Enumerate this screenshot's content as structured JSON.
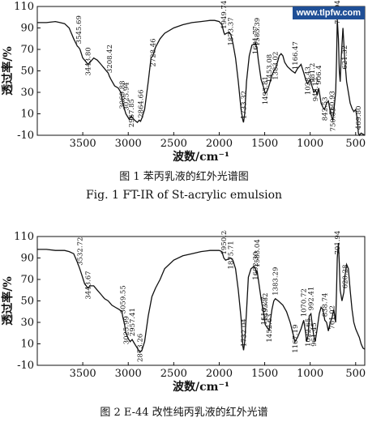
{
  "watermark": "www.tlpfw.com",
  "captions": {
    "fig1_cn": "图 1   苯丙乳液的红外光谱图",
    "fig1_en": "Fig. 1 FT-IR of St-acrylic emulsion",
    "fig2_cn": "图 2   E-44 改性纯丙乳液的红外光谱"
  },
  "chart_data": [
    {
      "type": "line",
      "title": "",
      "xlabel": "波数/cm⁻¹",
      "ylabel": "透过率/%",
      "xlim": [
        4000,
        400
      ],
      "ylim": [
        -10,
        110
      ],
      "xticks": [
        3500,
        3000,
        2500,
        2000,
        1500,
        1000,
        500
      ],
      "yticks": [
        -10,
        10,
        30,
        50,
        70,
        90,
        110
      ],
      "grid": false,
      "series": [
        {
          "x": [
            4000,
            3900,
            3800,
            3750,
            3700,
            3650,
            3600,
            3560,
            3546,
            3530,
            3500,
            3460,
            3444,
            3420,
            3380,
            3340,
            3300,
            3260,
            3220,
            3208,
            3190,
            3150,
            3110,
            3082,
            3070,
            3060,
            3040,
            3026,
            3005,
            2990,
            2968,
            2950,
            2930,
            2900,
            2880,
            2865,
            2850,
            2820,
            2780,
            2750,
            2729,
            2700,
            2650,
            2600,
            2500,
            2400,
            2300,
            2200,
            2100,
            2050,
            2000,
            1970,
            1950,
            1940,
            1920,
            1890,
            1873,
            1850,
            1820,
            1790,
            1760,
            1740,
            1733,
            1720,
            1700,
            1670,
            1640,
            1612,
            1601,
            1590,
            1583,
            1570,
            1540,
            1510,
            1494,
            1480,
            1460,
            1453,
            1440,
            1420,
            1400,
            1383,
            1360,
            1340,
            1320,
            1300,
            1280,
            1250,
            1200,
            1166,
            1140,
            1100,
            1070,
            1050,
            1029,
            1000,
            981,
            960,
            943,
            920,
            906,
            880,
            860,
            842,
            820,
            800,
            780,
            761,
            751,
            740,
            720,
            710,
            702,
            690,
            680,
            670,
            660,
            640,
            621,
            600,
            580,
            560,
            540,
            520,
            500,
            480,
            470,
            460,
            440,
            420,
            400
          ],
          "y": [
            95,
            95,
            96,
            95,
            94,
            90,
            80,
            73,
            72,
            70,
            62,
            58,
            56,
            58,
            62,
            60,
            56,
            52,
            48,
            45,
            42,
            36,
            34,
            30,
            25,
            20,
            14,
            10,
            7,
            5,
            8,
            6,
            4,
            2,
            4,
            3,
            6,
            14,
            40,
            62,
            64,
            72,
            80,
            85,
            90,
            93,
            95,
            96,
            97,
            97,
            96,
            93,
            86,
            84,
            85,
            86,
            84,
            76,
            62,
            40,
            14,
            4,
            2,
            10,
            40,
            64,
            74,
            75,
            76,
            72,
            70,
            60,
            42,
            34,
            29,
            30,
            34,
            36,
            40,
            46,
            50,
            52,
            58,
            64,
            66,
            64,
            58,
            54,
            50,
            48,
            52,
            56,
            48,
            42,
            38,
            42,
            36,
            30,
            32,
            28,
            34,
            20,
            16,
            14,
            20,
            22,
            12,
            6,
            4,
            12,
            30,
            60,
            98,
            80,
            50,
            40,
            60,
            90,
            62,
            40,
            30,
            20,
            15,
            12,
            14,
            4,
            -8,
            -10,
            -8,
            -9,
            -10
          ]
        }
      ],
      "annotations": [
        {
          "label": "3545.69",
          "x": 3546
        },
        {
          "label": "3443.80",
          "x": 3444
        },
        {
          "label": "3208.42",
          "x": 3208
        },
        {
          "label": "3069.88",
          "x": 3070
        },
        {
          "label": "3025.94",
          "x": 3026
        },
        {
          "label": "2967.85",
          "x": 2968
        },
        {
          "label": "2864.66",
          "x": 2865
        },
        {
          "label": "2728.46",
          "x": 2728
        },
        {
          "label": "1949.74",
          "x": 1950
        },
        {
          "label": "1873.37",
          "x": 1873
        },
        {
          "label": "1733.32",
          "x": 1733
        },
        {
          "label": "1601.77",
          "x": 1602
        },
        {
          "label": "1583.39",
          "x": 1583
        },
        {
          "label": "1493.81",
          "x": 1494
        },
        {
          "label": "1453.08",
          "x": 1453
        },
        {
          "label": "1383.02",
          "x": 1383
        },
        {
          "label": "1166.47",
          "x": 1166
        },
        {
          "label": "1028.43",
          "x": 1028
        },
        {
          "label": "981.2",
          "x": 981
        },
        {
          "label": "943.12",
          "x": 943
        },
        {
          "label": "906.4",
          "x": 906
        },
        {
          "label": "842.53",
          "x": 842
        },
        {
          "label": "760.93",
          "x": 761
        },
        {
          "label": "750.83",
          "x": 751
        },
        {
          "label": "701.94",
          "x": 702
        },
        {
          "label": "621.32",
          "x": 621
        },
        {
          "label": "469.80",
          "x": 470
        }
      ]
    },
    {
      "type": "line",
      "title": "",
      "xlabel": "波数/cm⁻¹",
      "ylabel": "透过率/%",
      "xlim": [
        4000,
        400
      ],
      "ylim": [
        -10,
        110
      ],
      "xticks": [
        3500,
        3000,
        2500,
        2000,
        1500,
        1000,
        500
      ],
      "yticks": [
        -10,
        10,
        30,
        50,
        70,
        90,
        110
      ],
      "grid": false,
      "series": [
        {
          "x": [
            4000,
            3900,
            3800,
            3700,
            3650,
            3600,
            3560,
            3533,
            3510,
            3480,
            3444,
            3420,
            3380,
            3340,
            3300,
            3260,
            3220,
            3180,
            3140,
            3100,
            3070,
            3060,
            3040,
            3026,
            3000,
            2980,
            2957,
            2930,
            2900,
            2873,
            2850,
            2820,
            2780,
            2740,
            2700,
            2650,
            2600,
            2500,
            2400,
            2300,
            2200,
            2100,
            2000,
            1970,
            1950,
            1930,
            1900,
            1876,
            1850,
            1820,
            1790,
            1760,
            1740,
            1732,
            1720,
            1700,
            1680,
            1650,
            1620,
            1602,
            1590,
            1583,
            1570,
            1540,
            1520,
            1510,
            1494,
            1480,
            1460,
            1453,
            1440,
            1420,
            1400,
            1383,
            1350,
            1300,
            1260,
            1220,
            1190,
            1167,
            1140,
            1100,
            1071,
            1050,
            1040,
            1022,
            1010,
            992,
            980,
            961,
            945,
            930,
            900,
            880,
            860,
            839,
            820,
            800,
            780,
            761,
            740,
            720,
            710,
            702,
            690,
            680,
            670,
            650,
            630,
            620,
            600,
            580,
            560,
            540,
            520,
            500,
            480,
            460,
            440,
            420,
            400
          ],
          "y": [
            98,
            98,
            97,
            97,
            96,
            94,
            86,
            80,
            74,
            66,
            62,
            64,
            64,
            60,
            56,
            52,
            50,
            46,
            44,
            42,
            40,
            35,
            28,
            20,
            15,
            12,
            14,
            10,
            6,
            2,
            4,
            12,
            36,
            54,
            62,
            70,
            80,
            88,
            92,
            94,
            96,
            97,
            97,
            96,
            90,
            88,
            89,
            90,
            88,
            80,
            60,
            34,
            8,
            4,
            12,
            40,
            72,
            80,
            82,
            80,
            76,
            78,
            70,
            52,
            42,
            38,
            28,
            26,
            24,
            22,
            30,
            42,
            50,
            52,
            50,
            46,
            40,
            30,
            20,
            12,
            16,
            24,
            32,
            20,
            12,
            18,
            36,
            38,
            30,
            18,
            12,
            20,
            38,
            44,
            42,
            32,
            30,
            22,
            30,
            34,
            42,
            30,
            60,
            90,
            104,
            85,
            60,
            50,
            58,
            72,
            84,
            80,
            60,
            42,
            30,
            24,
            20,
            16,
            10,
            6,
            5
          ]
        }
      ],
      "annotations": [
        {
          "label": "3532.72",
          "x": 3533
        },
        {
          "label": "3443.67",
          "x": 3444
        },
        {
          "label": "3059.55",
          "x": 3060
        },
        {
          "label": "3025.99",
          "x": 3026
        },
        {
          "label": "2957.41",
          "x": 2957
        },
        {
          "label": "2873.26",
          "x": 2873
        },
        {
          "label": "1950.24",
          "x": 1950
        },
        {
          "label": "1875.71",
          "x": 1876
        },
        {
          "label": "1732.04",
          "x": 1732
        },
        {
          "label": "1602.30",
          "x": 1602
        },
        {
          "label": "1583.04",
          "x": 1583
        },
        {
          "label": "1510.27",
          "x": 1510
        },
        {
          "label": "1493.82",
          "x": 1494
        },
        {
          "label": "1452.63",
          "x": 1453
        },
        {
          "label": "1383.29",
          "x": 1383
        },
        {
          "label": "1167.19",
          "x": 1167
        },
        {
          "label": "1070.72",
          "x": 1071
        },
        {
          "label": "1022.65",
          "x": 1022
        },
        {
          "label": "992.41",
          "x": 992
        },
        {
          "label": "961.45",
          "x": 961
        },
        {
          "label": "838.74",
          "x": 839
        },
        {
          "label": "761.02",
          "x": 761
        },
        {
          "label": "701.94",
          "x": 702
        },
        {
          "label": "620.28",
          "x": 620
        }
      ]
    }
  ]
}
